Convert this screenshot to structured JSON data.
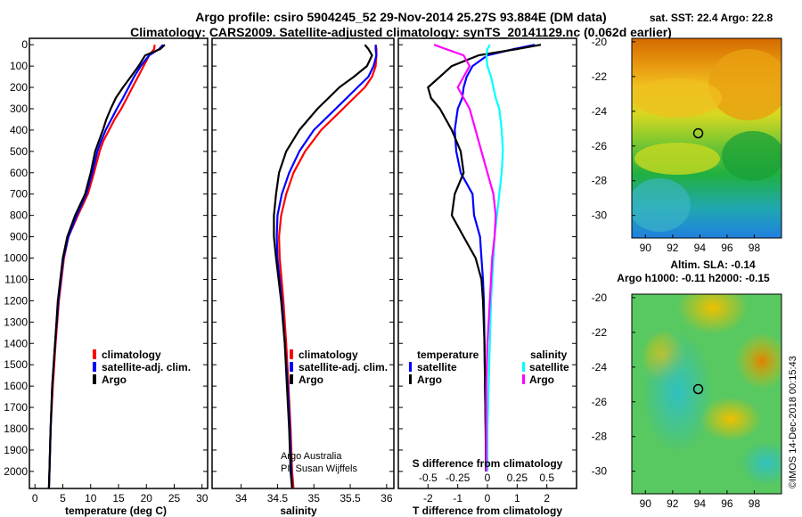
{
  "title_line1": "Argo profile: csiro 5904245_52 29-Nov-2014 25.27S 93.884E (DM data)",
  "title_line2": "Climatology: CARS2009. Satellite-adjusted climatology: synTS_20141129.nc (0.062d earlier)",
  "depth_ticks": [
    "0",
    "100",
    "200",
    "300",
    "400",
    "500",
    "600",
    "700",
    "800",
    "900",
    "1000",
    "1100",
    "1200",
    "1300",
    "1400",
    "1500",
    "1600",
    "1700",
    "1800",
    "1900",
    "2000"
  ],
  "credit": {
    "line1": "Argo Australia",
    "line2": "PI: Susan Wijffels"
  },
  "imos_stamp": "©IMOS 14-Dec-2018 00:15:43",
  "colors": {
    "climatology": "#ff0000",
    "satellite": "#0000ff",
    "argo": "#000000",
    "sat_salinity": "#00ffff",
    "argo_salinity": "#ff00ff"
  },
  "chart_data": [
    {
      "type": "line",
      "name": "temperature-panel",
      "xlabel": "temperature (deg C)",
      "ylabel": "depth",
      "xlim": [
        -1,
        31
      ],
      "ylim": [
        2080,
        -30
      ],
      "xticks": [
        "0",
        "5",
        "10",
        "15",
        "20",
        "25",
        "30"
      ],
      "legend": {
        "placement": "lower-middle",
        "entries": [
          "climatology",
          "satellite-adj. clim.",
          "Argo"
        ]
      },
      "depth": [
        0,
        20,
        50,
        100,
        150,
        200,
        250,
        300,
        350,
        400,
        450,
        500,
        600,
        700,
        800,
        900,
        1000,
        1200,
        1400,
        1600,
        1800,
        2000,
        2080
      ],
      "series": [
        {
          "name": "climatology",
          "color": "#ff0000",
          "values": [
            21.5,
            21.4,
            20.5,
            19.5,
            18.5,
            17.5,
            16.5,
            15.5,
            14.3,
            13.3,
            12.3,
            11.6,
            10.6,
            9.5,
            7.7,
            6.0,
            5.2,
            4.3,
            3.7,
            3.2,
            2.8,
            2.6,
            2.5
          ]
        },
        {
          "name": "satellite-adj. clim.",
          "color": "#0000ff",
          "values": [
            23.0,
            22.3,
            20.5,
            19.0,
            17.8,
            16.8,
            15.8,
            14.7,
            13.7,
            12.7,
            11.9,
            11.2,
            10.3,
            9.2,
            7.5,
            6.0,
            5.1,
            4.2,
            3.6,
            3.1,
            2.8,
            2.6,
            2.5
          ]
        },
        {
          "name": "Argo",
          "color": "#000000",
          "values": [
            23.3,
            22.5,
            19.8,
            18.6,
            17.2,
            15.8,
            14.5,
            13.6,
            12.8,
            12.2,
            11.5,
            10.8,
            10.0,
            9.0,
            7.2,
            5.8,
            5.0,
            4.1,
            3.6,
            3.1,
            2.8,
            2.6,
            2.5
          ]
        }
      ]
    },
    {
      "type": "line",
      "name": "salinity-panel",
      "xlabel": "salinity",
      "xlim": [
        33.6,
        36.1
      ],
      "ylim": [
        2080,
        -30
      ],
      "xticks": [
        "34",
        "34.5",
        "35",
        "35.5",
        "36"
      ],
      "legend": {
        "placement": "lower-middle",
        "entries": [
          "climatology",
          "satellite-adj. clim.",
          "Argo"
        ]
      },
      "depth": [
        0,
        20,
        50,
        100,
        150,
        200,
        250,
        300,
        400,
        500,
        600,
        700,
        800,
        900,
        1000,
        1200,
        1400,
        1600,
        1800,
        2000,
        2080
      ],
      "series": [
        {
          "name": "climatology",
          "color": "#ff0000",
          "values": [
            35.85,
            35.86,
            35.86,
            35.85,
            35.8,
            35.7,
            35.55,
            35.4,
            35.1,
            34.88,
            34.72,
            34.62,
            34.55,
            34.52,
            34.53,
            34.58,
            34.62,
            34.65,
            34.68,
            34.7,
            34.72
          ]
        },
        {
          "name": "satellite-adj. clim.",
          "color": "#0000ff",
          "values": [
            35.85,
            35.85,
            35.86,
            35.82,
            35.75,
            35.6,
            35.45,
            35.3,
            35.0,
            34.8,
            34.66,
            34.56,
            34.5,
            34.49,
            34.5,
            34.56,
            34.6,
            34.64,
            34.67,
            34.69,
            34.7
          ]
        },
        {
          "name": "Argo",
          "color": "#000000",
          "values": [
            35.7,
            35.75,
            35.8,
            35.73,
            35.55,
            35.35,
            35.2,
            35.05,
            34.8,
            34.62,
            34.52,
            34.48,
            34.45,
            34.45,
            34.48,
            34.55,
            34.6,
            34.63,
            34.66,
            34.68,
            34.7
          ]
        }
      ]
    },
    {
      "type": "line",
      "name": "difference-panel",
      "xlabel": "T difference from climatology",
      "xlabel_top": "S difference from climatology",
      "xlim": [
        -3,
        3
      ],
      "ylim": [
        2080,
        -30
      ],
      "xticks": [
        "-2",
        "-1",
        "0",
        "1",
        "2"
      ],
      "xticks_top": [
        "-0.5",
        "-0.25",
        "0",
        "0.25",
        "0.5"
      ],
      "legend": {
        "placement": "lower-middle",
        "groups": [
          "temperature",
          "salinity"
        ],
        "entries": [
          "satellite",
          "Argo",
          "satellite",
          "Argo"
        ]
      },
      "depth": [
        0,
        20,
        50,
        100,
        150,
        200,
        250,
        300,
        400,
        500,
        600,
        700,
        800,
        900,
        1000,
        1100,
        1200,
        1400,
        1600,
        1800,
        2000
      ],
      "series": [
        {
          "name": "temperature satellite",
          "color": "#0000ff",
          "values": [
            1.6,
            0.9,
            0.0,
            -0.5,
            -0.7,
            -0.8,
            -0.85,
            -1.0,
            -1.1,
            -1.05,
            -0.9,
            -0.5,
            -0.45,
            -0.25,
            -0.2,
            -0.15,
            -0.12,
            -0.1,
            -0.08,
            -0.06,
            -0.05
          ]
        },
        {
          "name": "temperature Argo",
          "color": "#000000",
          "values": [
            1.8,
            1.0,
            -0.3,
            -1.2,
            -1.6,
            -2.0,
            -1.9,
            -1.6,
            -1.2,
            -0.9,
            -0.8,
            -1.1,
            -1.2,
            -0.8,
            -0.4,
            -0.2,
            -0.15,
            -0.1,
            -0.08,
            -0.06,
            -0.05
          ]
        },
        {
          "name": "salinity satellite",
          "color": "#00ffff",
          "values": [
            0.02,
            0.0,
            -0.01,
            0.0,
            0.03,
            0.05,
            0.07,
            0.1,
            0.12,
            0.13,
            0.12,
            0.1,
            0.08,
            0.06,
            0.05,
            0.04,
            0.03,
            0.02,
            0.01,
            0.0,
            0.0
          ]
        },
        {
          "name": "salinity Argo",
          "color": "#ff00ff",
          "values": [
            -0.45,
            -0.35,
            -0.2,
            -0.15,
            -0.2,
            -0.25,
            -0.2,
            -0.15,
            -0.1,
            -0.05,
            0.0,
            0.05,
            0.07,
            0.06,
            0.04,
            0.03,
            0.02,
            0.0,
            -0.01,
            -0.01,
            -0.01
          ]
        }
      ]
    },
    {
      "type": "heatmap",
      "name": "sst-map",
      "title": "sat. SST: 22.4  Argo: 22.8",
      "xlim": [
        89,
        100
      ],
      "ylim": [
        -31.3,
        -19.8
      ],
      "xticks": [
        "90",
        "92",
        "94",
        "96",
        "98"
      ],
      "yticks": [
        "-20",
        "-22",
        "-24",
        "-26",
        "-28",
        "-30"
      ],
      "marker": {
        "lon": 93.88,
        "lat": -25.27
      }
    },
    {
      "type": "heatmap",
      "name": "sla-map",
      "title_line1": "Altim. SLA: -0.14",
      "title_line2": "Argo h1000: -0.11 h2000: -0.15",
      "xlim": [
        89,
        100
      ],
      "ylim": [
        -31.3,
        -19.8
      ],
      "xticks": [
        "90",
        "92",
        "94",
        "96",
        "98"
      ],
      "yticks": [
        "-20",
        "-22",
        "-24",
        "-26",
        "-28",
        "-30"
      ],
      "marker": {
        "lon": 93.88,
        "lat": -25.27
      }
    }
  ]
}
